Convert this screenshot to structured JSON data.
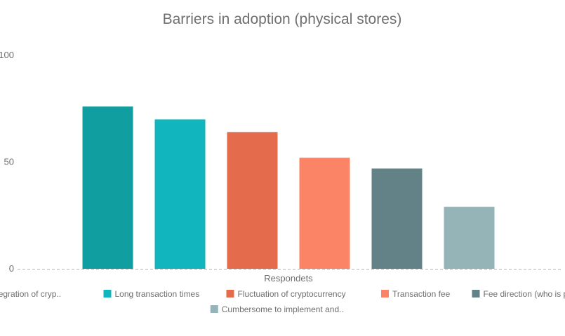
{
  "chart_data": {
    "type": "bar",
    "title": "Barriers in adoption (physical stores)",
    "xlabel": "Respondets",
    "ylabel": "",
    "ylim": [
      0,
      100
    ],
    "yticks": [
      0,
      50,
      100
    ],
    "grid": false,
    "legend_position": "bottom",
    "categories": [
      "Respondets"
    ],
    "series": [
      {
        "name": "Lack of integration of cryp..",
        "values": [
          76
        ],
        "color": "#109ea0"
      },
      {
        "name": "Long transaction times",
        "values": [
          70
        ],
        "color": "#10b5be"
      },
      {
        "name": "Fluctuation of cryptocurrency",
        "values": [
          64
        ],
        "color": "#e56b4d"
      },
      {
        "name": "Transaction fee",
        "values": [
          52
        ],
        "color": "#fb8467"
      },
      {
        "name": "Fee direction (who is payin..",
        "values": [
          47
        ],
        "color": "#628287"
      },
      {
        "name": "Cumbersome to implement and..",
        "values": [
          29
        ],
        "color": "#94b4b8"
      }
    ]
  }
}
